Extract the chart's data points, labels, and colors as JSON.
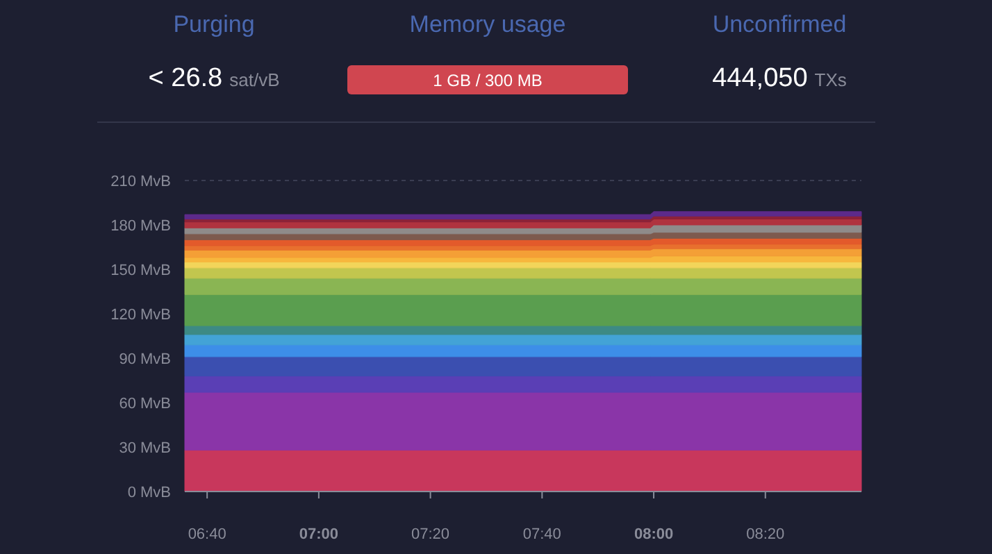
{
  "chart_data": {
    "type": "area",
    "stacked": true,
    "annotations": [
      "Purging",
      "Memory usage",
      "Unconfirmed",
      "< 26.8",
      "sat/vB",
      "1 GB / 300 MB",
      "444,050",
      "TXs"
    ],
    "x": [
      6.6,
      7.99,
      8.0,
      8.62
    ],
    "series": [
      {
        "color": "#c8375c",
        "values": [
          28,
          28,
          28,
          28
        ]
      },
      {
        "color": "#8a35a8",
        "values": [
          39,
          39,
          39,
          39
        ]
      },
      {
        "color": "#5a3fb5",
        "values": [
          11,
          11,
          11,
          11
        ]
      },
      {
        "color": "#3b4fb0",
        "values": [
          13,
          13,
          13,
          13
        ]
      },
      {
        "color": "#3d8ee8",
        "values": [
          8,
          8,
          8,
          8
        ]
      },
      {
        "color": "#43a3d6",
        "values": [
          7,
          7,
          7,
          7
        ]
      },
      {
        "color": "#3d8a84",
        "values": [
          6,
          6,
          6,
          6
        ]
      },
      {
        "color": "#5a9e4f",
        "values": [
          21,
          21,
          21,
          21
        ]
      },
      {
        "color": "#8ab553",
        "values": [
          11,
          11,
          11,
          11
        ]
      },
      {
        "color": "#c2c64e",
        "values": [
          7,
          7,
          7,
          7
        ]
      },
      {
        "color": "#f2d55a",
        "values": [
          4,
          4,
          4,
          4
        ]
      },
      {
        "color": "#f7b73d",
        "values": [
          3,
          3,
          4,
          4
        ]
      },
      {
        "color": "#f49f36",
        "values": [
          5,
          5,
          5,
          5
        ]
      },
      {
        "color": "#e8702e",
        "values": [
          3,
          3,
          3,
          3
        ]
      },
      {
        "color": "#e35a2b",
        "values": [
          4,
          4,
          4,
          4
        ]
      },
      {
        "color": "#7d5a4e",
        "values": [
          4,
          4,
          4,
          4
        ]
      },
      {
        "color": "#8f8b8a",
        "values": [
          4,
          4,
          5,
          5
        ]
      },
      {
        "color": "#b0333f",
        "values": [
          4,
          4,
          4,
          4
        ]
      },
      {
        "color": "#8c2239",
        "values": [
          2,
          2,
          2,
          2
        ]
      },
      {
        "color": "#5c2a8a",
        "values": [
          3,
          3,
          3,
          3
        ]
      }
    ],
    "xlim": [
      6.6,
      8.62
    ],
    "xticks": [
      {
        "value": 6.6667,
        "label": "06:40"
      },
      {
        "value": 7,
        "label": "07:00"
      },
      {
        "value": 7.3333,
        "label": "07:20"
      },
      {
        "value": 7.6667,
        "label": "07:40"
      },
      {
        "value": 8,
        "label": "08:00"
      },
      {
        "value": 8.3333,
        "label": "08:20"
      }
    ],
    "ylim": [
      0,
      210
    ],
    "yticks": [
      {
        "value": 0,
        "label": "0 MvB"
      },
      {
        "value": 30,
        "label": "30 MvB"
      },
      {
        "value": 60,
        "label": "60 MvB"
      },
      {
        "value": 90,
        "label": "90 MvB"
      },
      {
        "value": 120,
        "label": "120 MvB"
      },
      {
        "value": 150,
        "label": "150 MvB"
      },
      {
        "value": 180,
        "label": "180 MvB"
      },
      {
        "value": 210,
        "label": "210 MvB"
      }
    ],
    "ref_lines": [
      {
        "axis": "y",
        "value": 210,
        "line_style": "dashed"
      }
    ]
  }
}
